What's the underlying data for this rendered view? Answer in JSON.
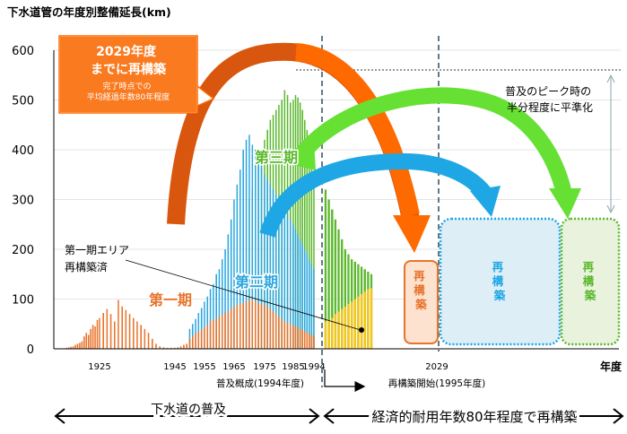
{
  "chart_data": {
    "type": "bar",
    "title": "下水道管の年度別整備延長(km)",
    "xlabel": "年度",
    "ylim": [
      0,
      600
    ],
    "yticks": [
      0,
      100,
      200,
      300,
      400,
      500,
      600
    ],
    "xticks": [
      {
        "year": 1925,
        "label": "1925"
      },
      {
        "year": 1945,
        "label": "1945"
      },
      {
        "year": 1955,
        "label": "1955"
      },
      {
        "year": 1965,
        "label": "1965"
      },
      {
        "year": 1975,
        "label": "1975"
      },
      {
        "year": 1985,
        "label": "1985"
      },
      {
        "year": 1994,
        "label": "1994"
      },
      {
        "year": 2029,
        "label": "2029"
      }
    ],
    "series": [
      {
        "name": "第一期",
        "color": "#E8732A",
        "points": [
          [
            1910,
            2
          ],
          [
            1911,
            3
          ],
          [
            1912,
            4
          ],
          [
            1913,
            5
          ],
          [
            1914,
            8
          ],
          [
            1915,
            10
          ],
          [
            1916,
            12
          ],
          [
            1917,
            15
          ],
          [
            1918,
            25
          ],
          [
            1919,
            32
          ],
          [
            1920,
            28
          ],
          [
            1921,
            40
          ],
          [
            1922,
            48
          ],
          [
            1923,
            45
          ],
          [
            1924,
            58
          ],
          [
            1925,
            62
          ],
          [
            1926,
            72
          ],
          [
            1927,
            80
          ],
          [
            1928,
            70
          ],
          [
            1929,
            55
          ],
          [
            1930,
            98
          ],
          [
            1931,
            85
          ],
          [
            1932,
            78
          ],
          [
            1933,
            70
          ],
          [
            1934,
            62
          ],
          [
            1935,
            55
          ],
          [
            1936,
            48
          ],
          [
            1937,
            40
          ],
          [
            1938,
            32
          ],
          [
            1939,
            20
          ],
          [
            1940,
            10
          ],
          [
            1941,
            5
          ],
          [
            1942,
            3
          ],
          [
            1943,
            2
          ],
          [
            1944,
            2
          ],
          [
            1945,
            2
          ],
          [
            1946,
            3
          ],
          [
            1947,
            5
          ],
          [
            1948,
            8
          ],
          [
            1949,
            10
          ],
          [
            1950,
            20
          ],
          [
            1951,
            25
          ],
          [
            1952,
            32
          ],
          [
            1953,
            35
          ],
          [
            1954,
            38
          ],
          [
            1955,
            42
          ],
          [
            1956,
            48
          ],
          [
            1957,
            55
          ],
          [
            1958,
            58
          ],
          [
            1959,
            60
          ],
          [
            1960,
            65
          ],
          [
            1961,
            68
          ],
          [
            1962,
            72
          ],
          [
            1963,
            75
          ],
          [
            1964,
            80
          ],
          [
            1965,
            85
          ],
          [
            1966,
            88
          ],
          [
            1967,
            90
          ],
          [
            1968,
            92
          ],
          [
            1969,
            95
          ],
          [
            1970,
            98
          ],
          [
            1971,
            100
          ],
          [
            1972,
            95
          ],
          [
            1973,
            92
          ],
          [
            1974,
            90
          ],
          [
            1975,
            88
          ],
          [
            1976,
            85
          ],
          [
            1977,
            80
          ],
          [
            1978,
            75
          ],
          [
            1979,
            70
          ],
          [
            1980,
            65
          ],
          [
            1981,
            60
          ],
          [
            1982,
            55
          ],
          [
            1983,
            52
          ],
          [
            1984,
            50
          ],
          [
            1985,
            48
          ],
          [
            1986,
            45
          ],
          [
            1987,
            42
          ],
          [
            1988,
            40
          ],
          [
            1989,
            38
          ],
          [
            1990,
            35
          ],
          [
            1991,
            32
          ],
          [
            1992,
            30
          ],
          [
            1993,
            28
          ],
          [
            1994,
            25
          ]
        ]
      },
      {
        "name": "第二期",
        "color": "#2BA6DE",
        "points": [
          [
            1950,
            40
          ],
          [
            1951,
            50
          ],
          [
            1952,
            60
          ],
          [
            1953,
            72
          ],
          [
            1954,
            82
          ],
          [
            1955,
            95
          ],
          [
            1956,
            105
          ],
          [
            1957,
            120
          ],
          [
            1958,
            130
          ],
          [
            1959,
            150
          ],
          [
            1960,
            160
          ],
          [
            1961,
            180
          ],
          [
            1962,
            200
          ],
          [
            1963,
            230
          ],
          [
            1964,
            260
          ],
          [
            1965,
            300
          ],
          [
            1966,
            330
          ],
          [
            1967,
            360
          ],
          [
            1968,
            400
          ],
          [
            1969,
            420
          ],
          [
            1970,
            430
          ],
          [
            1971,
            410
          ],
          [
            1972,
            400
          ],
          [
            1973,
            380
          ],
          [
            1974,
            370
          ],
          [
            1975,
            350
          ],
          [
            1976,
            340
          ],
          [
            1977,
            330
          ],
          [
            1978,
            320
          ],
          [
            1979,
            310
          ],
          [
            1980,
            300
          ],
          [
            1981,
            290
          ],
          [
            1982,
            280
          ],
          [
            1983,
            270
          ],
          [
            1984,
            260
          ],
          [
            1985,
            250
          ],
          [
            1986,
            240
          ],
          [
            1987,
            230
          ],
          [
            1988,
            220
          ],
          [
            1989,
            210
          ],
          [
            1990,
            200
          ],
          [
            1991,
            190
          ],
          [
            1992,
            180
          ],
          [
            1993,
            170
          ],
          [
            1994,
            160
          ]
        ]
      },
      {
        "name": "第三期",
        "color": "#5BB82C",
        "points": [
          [
            1970,
            300
          ],
          [
            1971,
            320
          ],
          [
            1972,
            350
          ],
          [
            1973,
            380
          ],
          [
            1974,
            400
          ],
          [
            1975,
            420
          ],
          [
            1976,
            440
          ],
          [
            1977,
            460
          ],
          [
            1978,
            470
          ],
          [
            1979,
            480
          ],
          [
            1980,
            490
          ],
          [
            1981,
            500
          ],
          [
            1982,
            520
          ],
          [
            1983,
            510
          ],
          [
            1984,
            495
          ],
          [
            1985,
            500
          ],
          [
            1986,
            510
          ],
          [
            1987,
            505
          ],
          [
            1988,
            495
          ],
          [
            1989,
            480
          ],
          [
            1990,
            460
          ],
          [
            1991,
            440
          ],
          [
            1992,
            420
          ],
          [
            1993,
            380
          ],
          [
            1994,
            340
          ],
          [
            1995,
            320
          ],
          [
            1996,
            300
          ],
          [
            1997,
            280
          ],
          [
            1998,
            260
          ],
          [
            1999,
            240
          ],
          [
            2000,
            220
          ],
          [
            2001,
            200
          ],
          [
            2002,
            190
          ],
          [
            2003,
            180
          ],
          [
            2004,
            175
          ],
          [
            2005,
            170
          ],
          [
            2006,
            165
          ],
          [
            2007,
            160
          ],
          [
            2008,
            155
          ],
          [
            2009,
            150
          ]
        ]
      },
      {
        "name": "第一期エリア再構築済",
        "color": "#F5C518",
        "points": [
          [
            1995,
            55
          ],
          [
            1996,
            58
          ],
          [
            1997,
            62
          ],
          [
            1998,
            70
          ],
          [
            1999,
            75
          ],
          [
            2000,
            80
          ],
          [
            2001,
            85
          ],
          [
            2002,
            90
          ],
          [
            2003,
            95
          ],
          [
            2004,
            100
          ],
          [
            2005,
            105
          ],
          [
            2006,
            110
          ],
          [
            2007,
            115
          ],
          [
            2008,
            120
          ],
          [
            2009,
            122
          ]
        ]
      }
    ],
    "annotations": {
      "phase1": "第一期",
      "phase2": "第二期",
      "phase3": "第三期",
      "callout_title": "2029年度\nまでに再構築",
      "callout_sub": "完了時点での\n平均経過年数80年程度",
      "area_label": "第一期エリア\n再構築済",
      "peak_note": "普及のピーク時の\n半分程度に平準化",
      "rebuild": "再構築",
      "base_note": "普及概成(1994年度)",
      "start_note": "再構築開始(1995年度)",
      "spread": "下水道の普及",
      "rebuild_span": "経済的耐用年数80年程度で再構築"
    },
    "colors": {
      "phase1": "#E8732A",
      "phase2": "#2BA6DE",
      "phase3": "#5BB82C",
      "rebuilt": "#F5C518",
      "arrow_orange": "#FF6A00",
      "arrow_dark": "#D9560E",
      "arrow_blue": "#1EA7E4",
      "arrow_green": "#66E033",
      "box_blue_fill": "#DDEEF6",
      "box_green_fill": "#E9F2DC",
      "box_orange_fill": "#FCE2CF"
    }
  }
}
